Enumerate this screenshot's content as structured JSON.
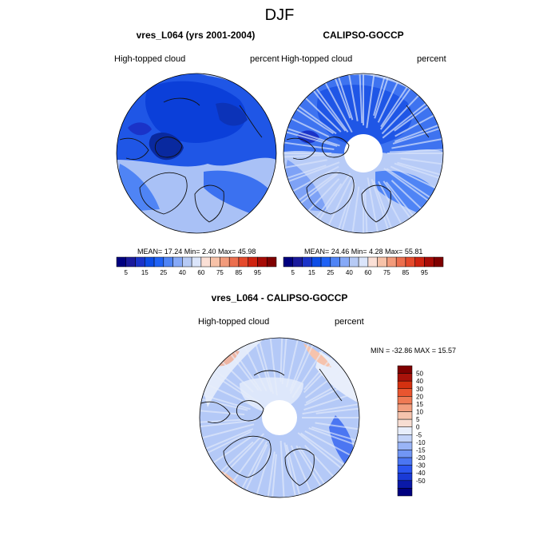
{
  "figure": {
    "title": "DJF"
  },
  "panels": [
    {
      "title": "vres_L064 (yrs 2001-2004)",
      "variable": "High-topped cloud",
      "units": "percent",
      "stats": "MEAN=  17.24  Min=   2.40  Max=  45.98"
    },
    {
      "title": "CALIPSO-GOCCP",
      "variable": "High-topped cloud",
      "units": "percent",
      "stats": "MEAN=  24.46  Min=   4.28  Max=  55.81"
    },
    {
      "title": "vres_L064 - CALIPSO-GOCCP",
      "variable": "High-topped cloud",
      "units": "percent",
      "stats": "MIN = -32.86 MAX =  15.57"
    }
  ],
  "colors": {
    "abs_scale": [
      "#00007f",
      "#1a1a9c",
      "#1a33c8",
      "#0c4ce6",
      "#1f62f5",
      "#4f84f5",
      "#86a9f7",
      "#b6caf5",
      "#dbe5fb",
      "#fbe0d6",
      "#f7c2a8",
      "#f29b7b",
      "#ec6f4e",
      "#e54a2c",
      "#cf2310",
      "#a70b06",
      "#7f0000"
    ],
    "diff_scale": [
      "#00007f",
      "#0a19a8",
      "#1a3ad6",
      "#2b55ef",
      "#4b76f2",
      "#7196f4",
      "#99b4f6",
      "#c3d3f8",
      "#e8eefb",
      "#f7ddd2",
      "#f5c3ad",
      "#f29e7e",
      "#ef7a54",
      "#e9552f",
      "#d43110",
      "#a8120a",
      "#7f0000"
    ]
  },
  "chart_data": [
    {
      "type": "heatmap",
      "projection": "north-polar-stereographic",
      "title": "vres_L064 (yrs 2001-2004)",
      "variable": "High-topped cloud",
      "units": "percent",
      "mean": 17.24,
      "min": 2.4,
      "max": 45.98,
      "colorbar": {
        "orientation": "horizontal",
        "labels": [
          "5",
          "15",
          "25",
          "40",
          "60",
          "75",
          "85",
          "95"
        ]
      }
    },
    {
      "type": "heatmap",
      "projection": "north-polar-stereographic",
      "title": "CALIPSO-GOCCP",
      "variable": "High-topped cloud",
      "units": "percent",
      "mean": 24.46,
      "min": 4.28,
      "max": 55.81,
      "colorbar": {
        "orientation": "horizontal",
        "labels": [
          "5",
          "15",
          "25",
          "40",
          "60",
          "75",
          "85",
          "95"
        ]
      }
    },
    {
      "type": "heatmap",
      "projection": "north-polar-stereographic",
      "title": "vres_L064 - CALIPSO-GOCCP",
      "variable": "High-topped cloud",
      "units": "percent",
      "min": -32.86,
      "max": 15.57,
      "colorbar": {
        "orientation": "vertical",
        "labels": [
          "50",
          "40",
          "30",
          "20",
          "15",
          "10",
          "5",
          "0",
          "-5",
          "-10",
          "-15",
          "-20",
          "-30",
          "-40",
          "-50"
        ]
      }
    }
  ]
}
